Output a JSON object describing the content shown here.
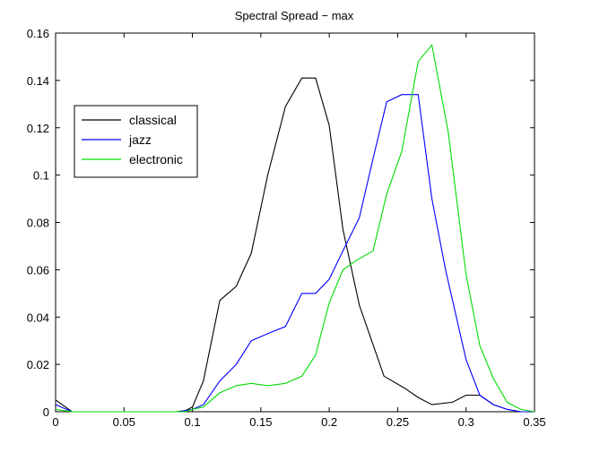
{
  "chart_data": {
    "type": "line",
    "title": "Spectral Spread − max",
    "xlabel": "",
    "ylabel": "",
    "xlim": [
      0,
      0.35
    ],
    "ylim": [
      0,
      0.16
    ],
    "xticks": [
      "0",
      "0.05",
      "0.1",
      "0.15",
      "0.2",
      "0.25",
      "0.3",
      "0.35"
    ],
    "yticks": [
      "0",
      "0.02",
      "0.04",
      "0.06",
      "0.08",
      "0.1",
      "0.12",
      "0.14",
      "0.16"
    ],
    "grid": false,
    "legend_position": "upper-left",
    "series": [
      {
        "name": "classical",
        "color": "#000000",
        "x": [
          0,
          0.012,
          0.025,
          0.05,
          0.075,
          0.088,
          0.095,
          0.1,
          0.108,
          0.12,
          0.132,
          0.143,
          0.155,
          0.168,
          0.18,
          0.19,
          0.2,
          0.21,
          0.222,
          0.24,
          0.255,
          0.265,
          0.275,
          0.29,
          0.3,
          0.31,
          0.32,
          0.33,
          0.34,
          0.35
        ],
        "y": [
          0.005,
          0,
          0,
          0,
          0,
          0,
          0.0005,
          0.002,
          0.013,
          0.047,
          0.053,
          0.067,
          0.1,
          0.129,
          0.141,
          0.141,
          0.121,
          0.077,
          0.045,
          0.015,
          0.01,
          0.006,
          0.003,
          0.004,
          0.007,
          0.007,
          0.003,
          0.001,
          0,
          0
        ]
      },
      {
        "name": "jazz",
        "color": "#0000ff",
        "x": [
          0,
          0.012,
          0.025,
          0.05,
          0.075,
          0.09,
          0.1,
          0.108,
          0.12,
          0.132,
          0.143,
          0.155,
          0.168,
          0.18,
          0.19,
          0.2,
          0.21,
          0.222,
          0.232,
          0.242,
          0.253,
          0.265,
          0.275,
          0.285,
          0.3,
          0.31,
          0.32,
          0.33,
          0.34,
          0.35
        ],
        "y": [
          0.003,
          0,
          0,
          0,
          0,
          0,
          0.001,
          0.003,
          0.013,
          0.02,
          0.03,
          0.033,
          0.036,
          0.05,
          0.05,
          0.056,
          0.068,
          0.082,
          0.107,
          0.131,
          0.134,
          0.134,
          0.09,
          0.06,
          0.022,
          0.007,
          0.003,
          0.001,
          0,
          0
        ]
      },
      {
        "name": "electronic",
        "color": "#00dd00",
        "x": [
          0,
          0.012,
          0.025,
          0.05,
          0.075,
          0.095,
          0.1,
          0.108,
          0.12,
          0.132,
          0.143,
          0.155,
          0.168,
          0.18,
          0.19,
          0.2,
          0.21,
          0.22,
          0.232,
          0.242,
          0.253,
          0.265,
          0.275,
          0.287,
          0.3,
          0.31,
          0.32,
          0.33,
          0.34,
          0.35
        ],
        "y": [
          0.001,
          0,
          0,
          0,
          0,
          0,
          0.001,
          0.002,
          0.008,
          0.011,
          0.012,
          0.011,
          0.012,
          0.015,
          0.024,
          0.046,
          0.06,
          0.064,
          0.068,
          0.092,
          0.11,
          0.148,
          0.155,
          0.118,
          0.058,
          0.028,
          0.014,
          0.004,
          0.001,
          0
        ]
      }
    ]
  }
}
